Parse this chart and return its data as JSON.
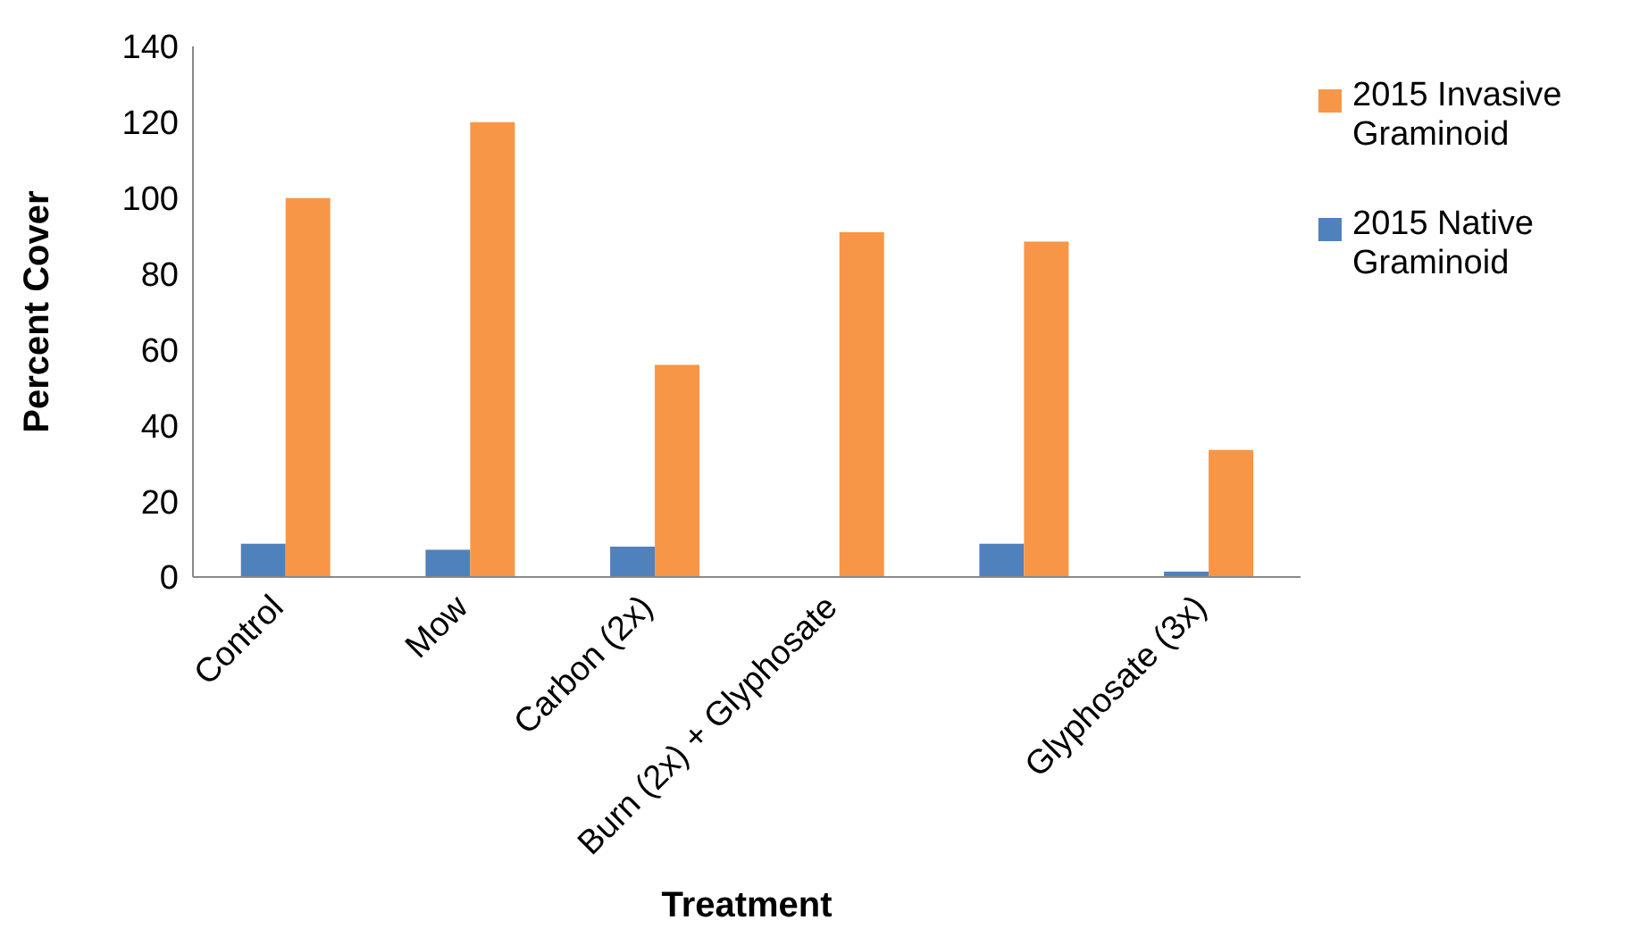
{
  "chart_data": {
    "type": "bar",
    "xlabel": "Treatment",
    "ylabel": "Percent Cover",
    "categories": [
      "Control",
      "Mow",
      "Carbon (2x)",
      "Burn (2x) + Glyphosate",
      null,
      "Glyphosate (3x)"
    ],
    "series": [
      {
        "name": "2015 Native Graminoid",
        "color": "#4f81bd",
        "values": [
          8.8,
          7.2,
          8,
          0,
          8.8,
          1.4
        ]
      },
      {
        "name": "2015 Invasive Graminoid",
        "color": "#f79646",
        "values": [
          100,
          120,
          56,
          91,
          88.5,
          33.5
        ]
      }
    ],
    "ylim": [
      0,
      140
    ],
    "yticks": [
      0,
      20,
      40,
      60,
      80,
      100,
      120,
      140
    ],
    "grid": false,
    "legend": "right"
  }
}
